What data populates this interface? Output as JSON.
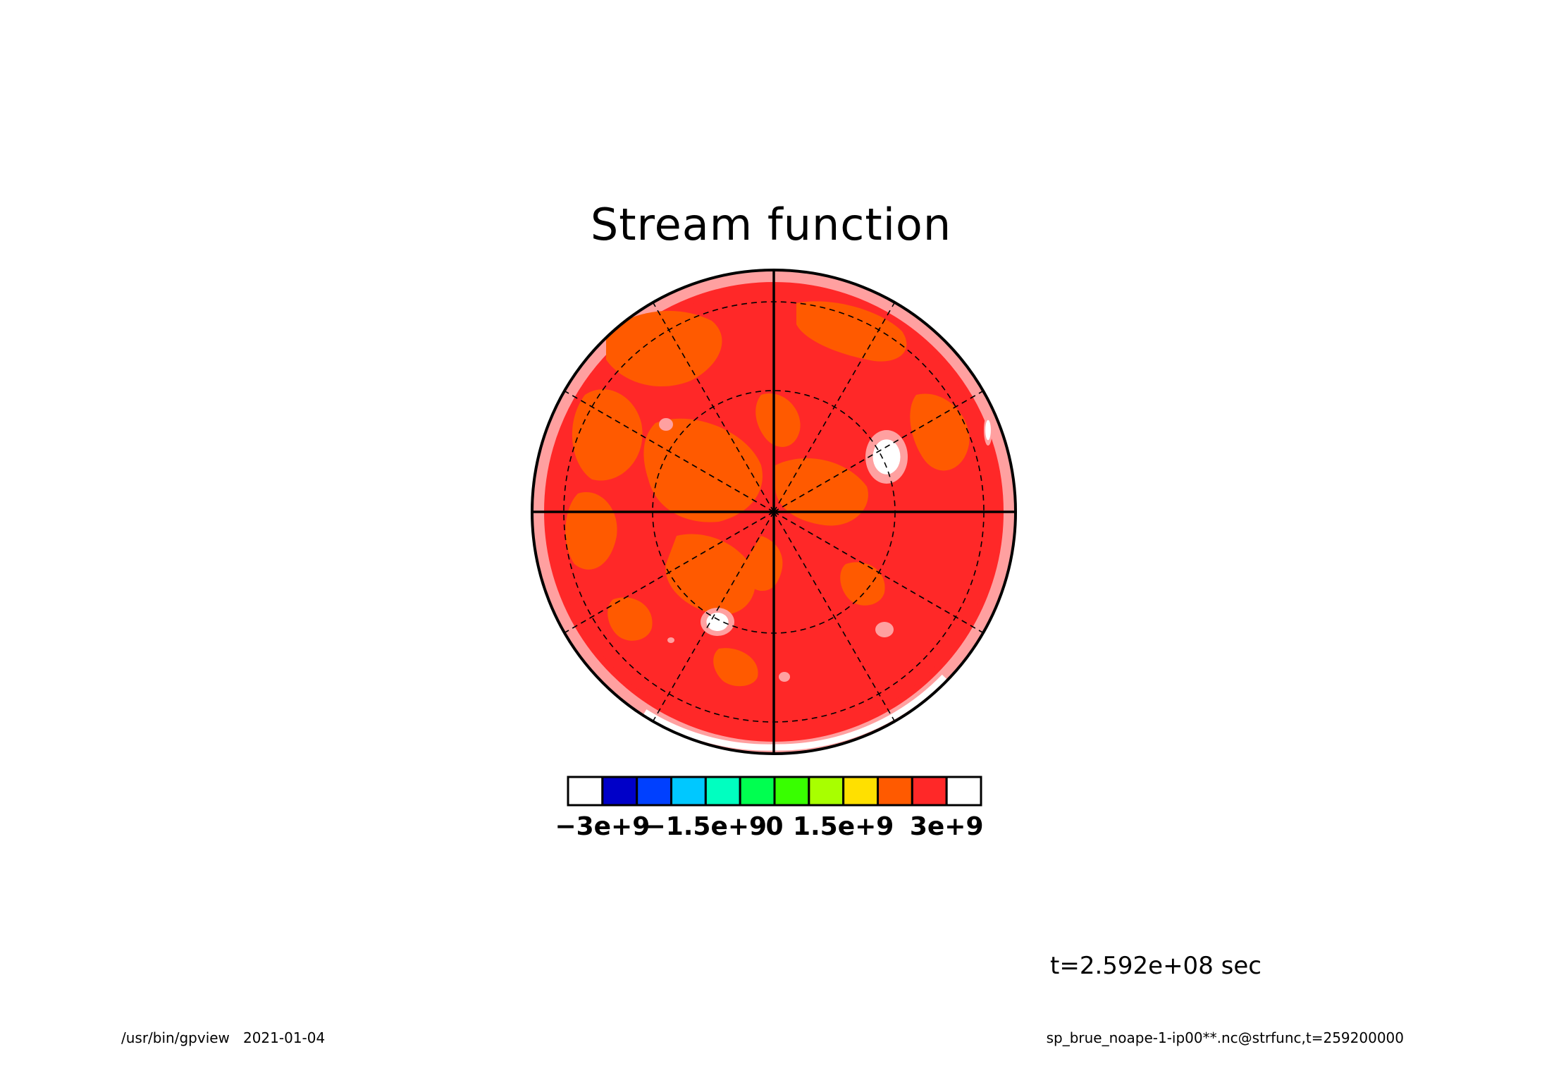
{
  "chart_data": {
    "type": "heatmap",
    "projection": "polar-stereographic",
    "title": "Stream function",
    "variable": "strfunc",
    "time_label": "t=2.592e+08 sec",
    "colorbar": {
      "tick_labels": [
        "−3e+9",
        "−1.5e+9",
        "0",
        "1.5e+9",
        "3e+9"
      ],
      "tick_values": [
        -3000000000,
        -1500000000,
        0,
        1500000000,
        3000000000
      ],
      "range": [
        -3000000000,
        3000000000
      ],
      "interval": 500000000,
      "colors": [
        "#ffffff",
        "#0000c8",
        "#0040ff",
        "#00c8ff",
        "#00ffc0",
        "#00ff50",
        "#38ff00",
        "#a8ff00",
        "#ffe000",
        "#ff5a00",
        "#ff2828",
        "#ffffff"
      ],
      "below_color": "#ffffff",
      "above_color": "#ffffff"
    },
    "field_colors": {
      "dominant": "#ff2828",
      "secondary": "#ff5a00",
      "high": "#ffa0a0",
      "peak": "#ffffff"
    },
    "grid": {
      "meridian_lines": 12,
      "latitude_circles": 3,
      "solid_axes": true
    }
  },
  "footer": {
    "program": "/usr/bin/gpview",
    "date": "2021-01-04",
    "source": "sp_brue_noape-1-ip00**.nc@strfunc,t=259200000"
  }
}
